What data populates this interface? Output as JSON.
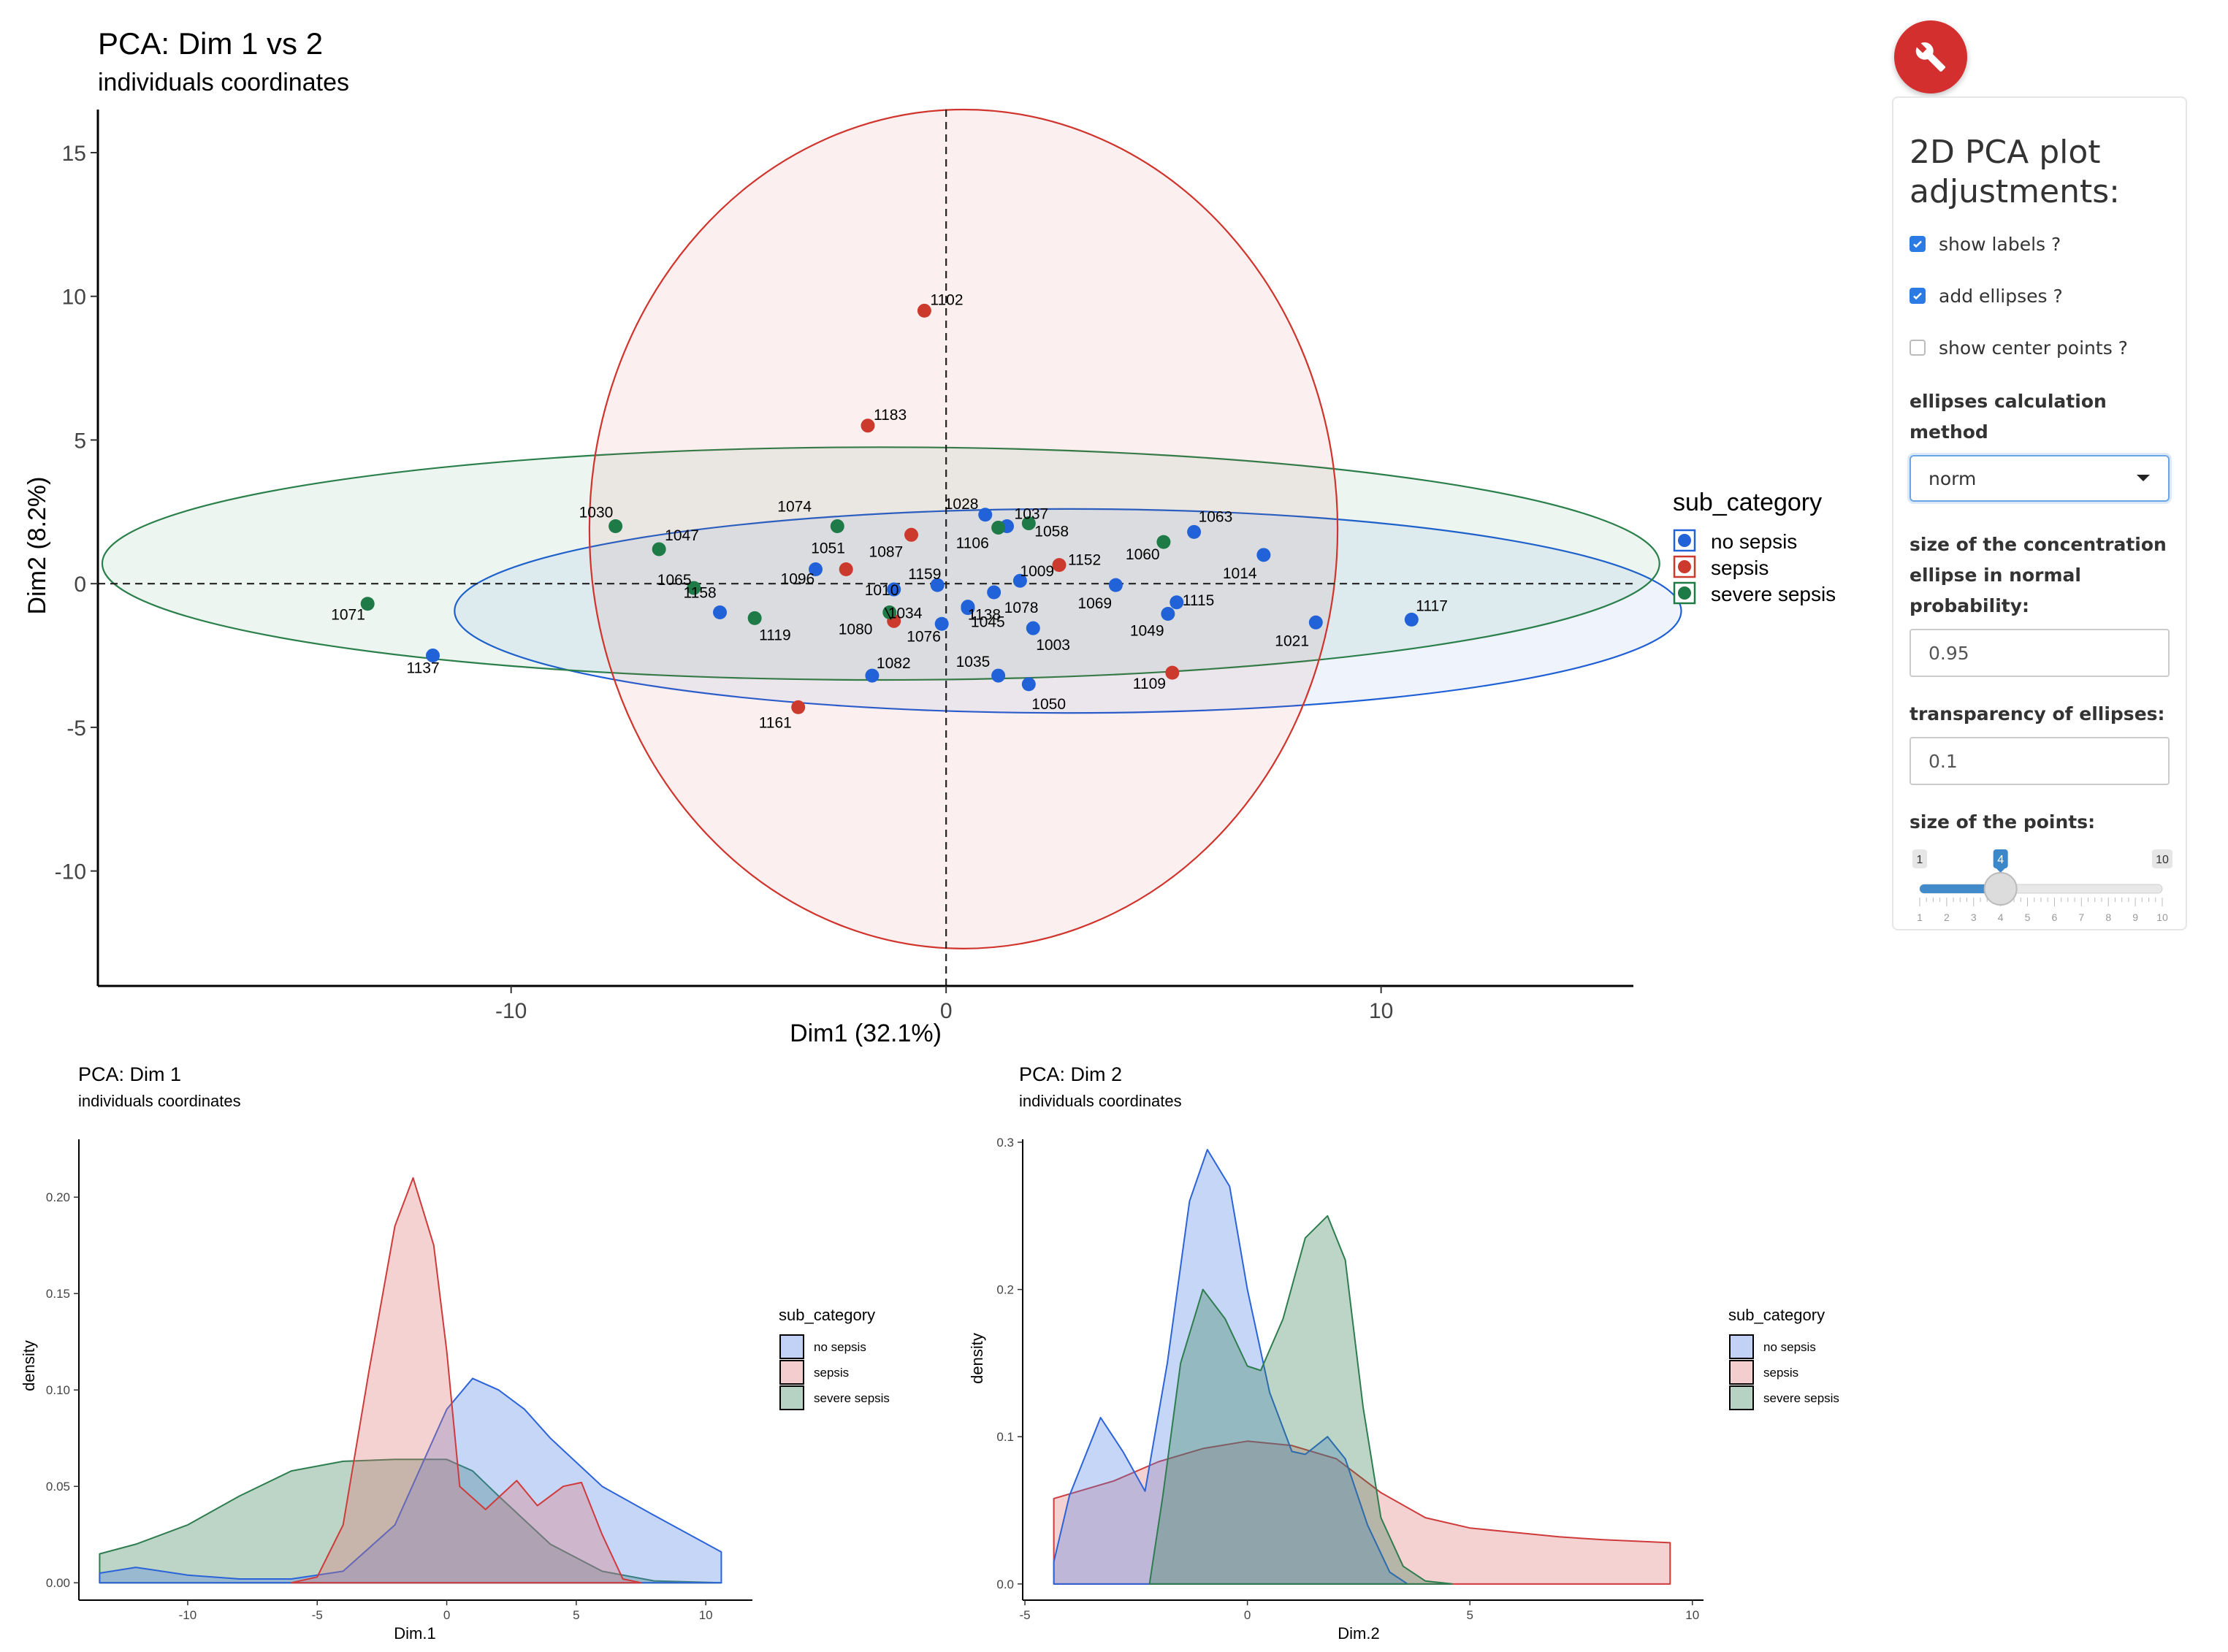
{
  "chart_data": [
    {
      "type": "scatter",
      "title": "PCA: Dim 1 vs 2",
      "subtitle": "individuals coordinates",
      "xlabel": "Dim1 (32.1%)",
      "ylabel": "Dim2 (8.2%)",
      "xlim": [
        -19.5,
        15.8
      ],
      "ylim": [
        -14,
        16.5
      ],
      "xticks": [
        -10,
        0,
        10
      ],
      "yticks": [
        -10,
        -5,
        0,
        5,
        10,
        15
      ],
      "legend_title": "sub_category",
      "legend_position": "right",
      "grid": false,
      "series": [
        {
          "name": "no sepsis",
          "color": "#2262d8",
          "points": [
            {
              "label": "1137",
              "x": -11.8,
              "y": -2.5
            },
            {
              "label": "1158",
              "x": -5.2,
              "y": -1.0
            },
            {
              "label": "1096",
              "x": -3.0,
              "y": 0.5
            },
            {
              "label": "1010",
              "x": -1.2,
              "y": -0.2
            },
            {
              "label": "1159",
              "x": -0.2,
              "y": -0.05
            },
            {
              "label": "1138",
              "x": 0.5,
              "y": -0.8
            },
            {
              "label": "1076",
              "x": -0.1,
              "y": -1.4
            },
            {
              "label": "1082",
              "x": -1.7,
              "y": -3.2
            },
            {
              "label": "1035",
              "x": 1.2,
              "y": -3.2
            },
            {
              "label": "1028",
              "x": 0.9,
              "y": 2.4
            },
            {
              "label": "1037",
              "x": 1.4,
              "y": 2.0
            },
            {
              "label": "1009",
              "x": 1.7,
              "y": 0.1
            },
            {
              "label": "1078",
              "x": 1.1,
              "y": -0.3
            },
            {
              "label": "1045",
              "x": 0.5,
              "y": -0.85
            },
            {
              "label": "1003",
              "x": 2.0,
              "y": -1.55
            },
            {
              "label": "1050",
              "x": 1.9,
              "y": -3.5
            },
            {
              "label": "1069",
              "x": 3.9,
              "y": -0.05
            },
            {
              "label": "1049",
              "x": 5.1,
              "y": -1.05
            },
            {
              "label": "1115",
              "x": 5.3,
              "y": -0.65
            },
            {
              "label": "1063",
              "x": 5.7,
              "y": 1.8
            },
            {
              "label": "1014",
              "x": 7.3,
              "y": 1.0
            },
            {
              "label": "1021",
              "x": 8.5,
              "y": -1.35
            },
            {
              "label": "1117",
              "x": 10.7,
              "y": -1.25
            }
          ]
        },
        {
          "name": "sepsis",
          "color": "#cc3a2e",
          "points": [
            {
              "label": "1102",
              "x": -0.5,
              "y": 9.5
            },
            {
              "label": "1183",
              "x": -1.8,
              "y": 5.5
            },
            {
              "label": "1087",
              "x": -0.8,
              "y": 1.7
            },
            {
              "label": "1051",
              "x": -2.3,
              "y": 0.5
            },
            {
              "label": "1034",
              "x": -1.2,
              "y": -1.3
            },
            {
              "label": "1152",
              "x": 2.6,
              "y": 0.65
            },
            {
              "label": "1109",
              "x": 5.2,
              "y": -3.1
            },
            {
              "label": "1161",
              "x": -3.4,
              "y": -4.3
            }
          ]
        },
        {
          "name": "severe sepsis",
          "color": "#1e7a47",
          "points": [
            {
              "label": "1071",
              "x": -13.3,
              "y": -0.7
            },
            {
              "label": "1030",
              "x": -7.6,
              "y": 2.0
            },
            {
              "label": "1047",
              "x": -6.6,
              "y": 1.2
            },
            {
              "label": "1065",
              "x": -5.8,
              "y": -0.15
            },
            {
              "label": "1119",
              "x": -4.4,
              "y": -1.2
            },
            {
              "label": "1074",
              "x": -2.5,
              "y": 2.0
            },
            {
              "label": "1080",
              "x": -1.3,
              "y": -1.0
            },
            {
              "label": "1106",
              "x": 1.2,
              "y": 1.95
            },
            {
              "label": "1058",
              "x": 1.9,
              "y": 2.1
            },
            {
              "label": "1060",
              "x": 5.0,
              "y": 1.45
            }
          ]
        }
      ]
    },
    {
      "type": "area",
      "title": "PCA: Dim 1",
      "subtitle": "individuals coordinates",
      "xlabel": "Dim.1",
      "ylabel": "density",
      "xlim": [
        -14.2,
        11.8
      ],
      "ylim": [
        -0.009,
        0.23
      ],
      "xticks": [
        -10,
        -5,
        0,
        5,
        10
      ],
      "yticks": [
        0.0,
        0.05,
        0.1,
        0.15,
        0.2
      ],
      "ytick_labels": [
        "0.00",
        "0.05",
        "0.10",
        "0.15",
        "0.20"
      ],
      "legend_title": "sub_category",
      "legend_position": "right",
      "series": [
        {
          "name": "severe sepsis",
          "color": "#2e7d4f",
          "fill": "#2e7d4f",
          "points": [
            [
              -13.4,
              0.015
            ],
            [
              -12,
              0.02
            ],
            [
              -10,
              0.03
            ],
            [
              -8,
              0.045
            ],
            [
              -6,
              0.058
            ],
            [
              -4,
              0.063
            ],
            [
              -2,
              0.064
            ],
            [
              0,
              0.064
            ],
            [
              1,
              0.058
            ],
            [
              2,
              0.045
            ],
            [
              4,
              0.02
            ],
            [
              6,
              0.006
            ],
            [
              8,
              0.001
            ],
            [
              10.6,
              0
            ]
          ]
        },
        {
          "name": "no sepsis",
          "color": "#2b63d9",
          "fill": "#4f7fe6",
          "points": [
            [
              -13.4,
              0.005
            ],
            [
              -12,
              0.008
            ],
            [
              -11,
              0.006
            ],
            [
              -10,
              0.004
            ],
            [
              -8,
              0.002
            ],
            [
              -6,
              0.002
            ],
            [
              -4,
              0.006
            ],
            [
              -2,
              0.03
            ],
            [
              0,
              0.09
            ],
            [
              1,
              0.106
            ],
            [
              2,
              0.1
            ],
            [
              3,
              0.09
            ],
            [
              4,
              0.075
            ],
            [
              6,
              0.05
            ],
            [
              8,
              0.035
            ],
            [
              10.6,
              0.016
            ]
          ]
        },
        {
          "name": "sepsis",
          "color": "#cf3a3a",
          "fill": "#e07272",
          "points": [
            [
              -6,
              0
            ],
            [
              -5,
              0.003
            ],
            [
              -4,
              0.03
            ],
            [
              -3,
              0.11
            ],
            [
              -2,
              0.185
            ],
            [
              -1.3,
              0.21
            ],
            [
              -0.5,
              0.175
            ],
            [
              0,
              0.12
            ],
            [
              0.5,
              0.05
            ],
            [
              1.5,
              0.038
            ],
            [
              2.7,
              0.053
            ],
            [
              3.5,
              0.04
            ],
            [
              4.5,
              0.05
            ],
            [
              5.2,
              0.052
            ],
            [
              6,
              0.025
            ],
            [
              6.8,
              0.002
            ],
            [
              7.5,
              0
            ]
          ]
        }
      ]
    },
    {
      "type": "area",
      "title": "PCA: Dim 2",
      "subtitle": "individuals coordinates",
      "xlabel": "Dim.2",
      "ylabel": "density",
      "xlim": [
        -5.05,
        10.25
      ],
      "ylim": [
        -0.011,
        0.302
      ],
      "xticks": [
        -5,
        0,
        5,
        10
      ],
      "yticks": [
        0.0,
        0.1,
        0.2,
        0.3
      ],
      "ytick_labels": [
        "0.0",
        "0.1",
        "0.2",
        "0.3"
      ],
      "legend_title": "sub_category",
      "legend_position": "right",
      "series": [
        {
          "name": "sepsis",
          "color": "#cf3a3a",
          "fill": "#e07272",
          "points": [
            [
              -4.35,
              0.058
            ],
            [
              -3,
              0.07
            ],
            [
              -2,
              0.083
            ],
            [
              -1,
              0.092
            ],
            [
              0,
              0.097
            ],
            [
              1,
              0.094
            ],
            [
              2,
              0.085
            ],
            [
              3,
              0.062
            ],
            [
              4,
              0.045
            ],
            [
              5,
              0.038
            ],
            [
              6,
              0.035
            ],
            [
              7,
              0.032
            ],
            [
              8,
              0.03
            ],
            [
              9.5,
              0.028
            ]
          ]
        },
        {
          "name": "no sepsis",
          "color": "#2b63d9",
          "fill": "#4f7fe6",
          "points": [
            [
              -4.35,
              0.015
            ],
            [
              -4,
              0.06
            ],
            [
              -3.3,
              0.113
            ],
            [
              -2.8,
              0.09
            ],
            [
              -2.3,
              0.063
            ],
            [
              -1.8,
              0.15
            ],
            [
              -1.3,
              0.26
            ],
            [
              -0.9,
              0.295
            ],
            [
              -0.4,
              0.27
            ],
            [
              0,
              0.2
            ],
            [
              0.5,
              0.13
            ],
            [
              1,
              0.09
            ],
            [
              1.3,
              0.088
            ],
            [
              1.8,
              0.1
            ],
            [
              2.2,
              0.085
            ],
            [
              2.7,
              0.04
            ],
            [
              3.2,
              0.008
            ],
            [
              3.6,
              0
            ]
          ]
        },
        {
          "name": "severe sepsis",
          "color": "#2e7d4f",
          "fill": "#2e7d4f",
          "points": [
            [
              -2.2,
              0
            ],
            [
              -1.9,
              0.06
            ],
            [
              -1.5,
              0.15
            ],
            [
              -1,
              0.2
            ],
            [
              -0.5,
              0.18
            ],
            [
              0,
              0.148
            ],
            [
              0.3,
              0.145
            ],
            [
              0.8,
              0.18
            ],
            [
              1.3,
              0.235
            ],
            [
              1.8,
              0.25
            ],
            [
              2.2,
              0.22
            ],
            [
              2.6,
              0.12
            ],
            [
              3.0,
              0.045
            ],
            [
              3.5,
              0.012
            ],
            [
              4,
              0.002
            ],
            [
              4.6,
              0
            ]
          ]
        }
      ]
    }
  ],
  "settings": {
    "title": "2D PCA plot adjustments:",
    "checkboxes": [
      {
        "label": "show labels ?",
        "checked": true
      },
      {
        "label": "add ellipses ?",
        "checked": true
      },
      {
        "label": "show center points ?",
        "checked": false
      }
    ],
    "ellipse_method_label": "ellipses calculation method",
    "ellipse_method_value": "norm",
    "ellipse_size_label": "size of the concentration ellipse in normal probability:",
    "ellipse_size_value": "0.95",
    "transparency_label": "transparency of ellipses:",
    "transparency_value": "0.1",
    "point_size_label": "size of the points:",
    "point_size": {
      "min": 1,
      "max": 10,
      "value": 4,
      "ticks": [
        "1",
        "2",
        "3",
        "4",
        "5",
        "6",
        "7",
        "8",
        "9",
        "10"
      ]
    }
  }
}
